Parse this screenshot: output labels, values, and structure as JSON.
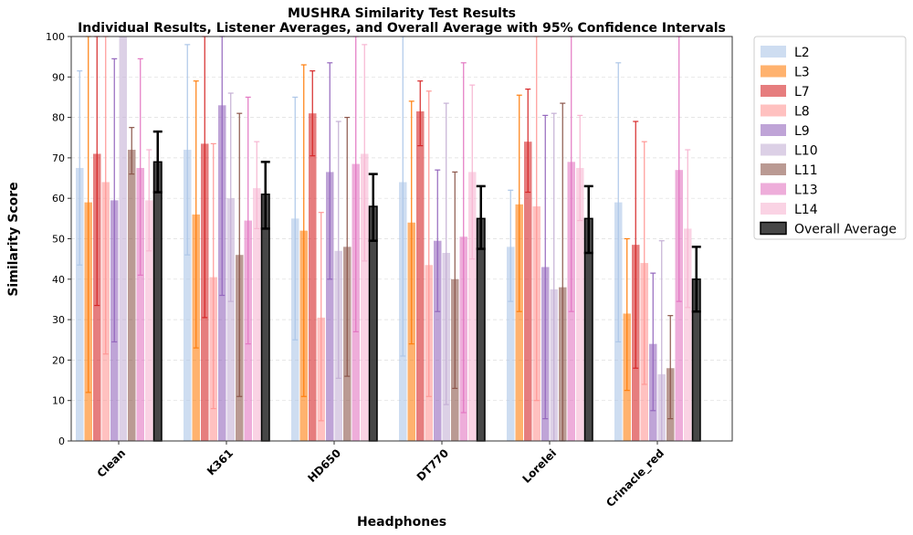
{
  "chart_data": {
    "type": "bar",
    "title": "MUSHRA Similarity Test Results",
    "subtitle": "Individual Results, Listener Averages, and Overall Average with 95% Confidence Intervals",
    "xlabel": "Headphones",
    "ylabel": "Similarity Score",
    "ylim": [
      0,
      100
    ],
    "yticks": [
      0,
      10,
      20,
      30,
      40,
      50,
      60,
      70,
      80,
      90,
      100
    ],
    "grid": true,
    "legend_placement": "outside-right",
    "categories": [
      "Clean",
      "K361",
      "HD650",
      "DT770",
      "Lorelei",
      "Crinacle_red"
    ],
    "series": [
      {
        "name": "L2",
        "color": "#aec7e8",
        "values": [
          67.5,
          72,
          55,
          64,
          48,
          59
        ],
        "ci": [
          [
            43.5,
            91.5
          ],
          [
            46,
            98
          ],
          [
            25,
            85
          ],
          [
            21,
            100
          ],
          [
            34.5,
            62
          ],
          [
            24.5,
            93.5
          ]
        ]
      },
      {
        "name": "L3",
        "color": "#ff7f0e",
        "values": [
          59,
          56,
          52,
          54,
          58.5,
          31.5
        ],
        "ci": [
          [
            12,
            100
          ],
          [
            23,
            89
          ],
          [
            11,
            93
          ],
          [
            24,
            84
          ],
          [
            32,
            85.5
          ],
          [
            12.5,
            50
          ]
        ]
      },
      {
        "name": "L7",
        "color": "#d62728",
        "values": [
          71,
          73.5,
          81,
          81.5,
          74,
          48.5
        ],
        "ci": [
          [
            33.5,
            100
          ],
          [
            30.5,
            100
          ],
          [
            70.5,
            91.5
          ],
          [
            73,
            89
          ],
          [
            61.5,
            87
          ],
          [
            18,
            79
          ]
        ]
      },
      {
        "name": "L8",
        "color": "#ff9896",
        "values": [
          64,
          40.5,
          30.5,
          43.5,
          58,
          44
        ],
        "ci": [
          [
            21.5,
            100
          ],
          [
            8,
            73.5
          ],
          [
            5,
            56.5
          ],
          [
            11,
            86.5
          ],
          [
            10,
            100
          ],
          [
            14,
            74
          ]
        ]
      },
      {
        "name": "L9",
        "color": "#9467bd",
        "values": [
          59.5,
          83,
          66.5,
          49.5,
          43,
          24
        ],
        "ci": [
          [
            24.5,
            94.5
          ],
          [
            36,
            100
          ],
          [
            40,
            93.5
          ],
          [
            32,
            67
          ],
          [
            5.5,
            80.5
          ],
          [
            7.5,
            41.5
          ]
        ]
      },
      {
        "name": "L10",
        "color": "#c5b0d5",
        "values": [
          100,
          60,
          47,
          46.5,
          37.5,
          16.5
        ],
        "ci": [
          [
            100,
            100
          ],
          [
            34.5,
            86
          ],
          [
            15.5,
            79
          ],
          [
            9,
            83.5
          ],
          [
            0,
            81
          ],
          [
            0,
            49.5
          ]
        ]
      },
      {
        "name": "L11",
        "color": "#8c564b",
        "values": [
          72,
          46,
          48,
          40,
          38,
          18
        ],
        "ci": [
          [
            66,
            77.5
          ],
          [
            11,
            81
          ],
          [
            16,
            80
          ],
          [
            13,
            66.5
          ],
          [
            0,
            83.5
          ],
          [
            5.5,
            31
          ]
        ]
      },
      {
        "name": "L13",
        "color": "#e377c2",
        "values": [
          67.5,
          54.5,
          68.5,
          50.5,
          69,
          67
        ],
        "ci": [
          [
            41,
            94.5
          ],
          [
            24,
            85
          ],
          [
            27,
            100
          ],
          [
            7,
            93.5
          ],
          [
            32,
            100
          ],
          [
            34.5,
            100
          ]
        ]
      },
      {
        "name": "L14",
        "color": "#f7b6d2",
        "values": [
          59.5,
          62.5,
          71,
          66.5,
          67.5,
          52.5
        ],
        "ci": [
          [
            47,
            72
          ],
          [
            52.5,
            74
          ],
          [
            44.5,
            98
          ],
          [
            45,
            88
          ],
          [
            54.5,
            80.5
          ],
          [
            33,
            72
          ]
        ]
      },
      {
        "name": "Overall Average",
        "color": "#333333",
        "values": [
          69,
          61,
          58,
          55,
          55,
          40
        ],
        "ci": [
          [
            61.5,
            76.5
          ],
          [
            52.5,
            69
          ],
          [
            49.5,
            66
          ],
          [
            47.5,
            63
          ],
          [
            46.5,
            63
          ],
          [
            32,
            48
          ]
        ]
      }
    ]
  }
}
